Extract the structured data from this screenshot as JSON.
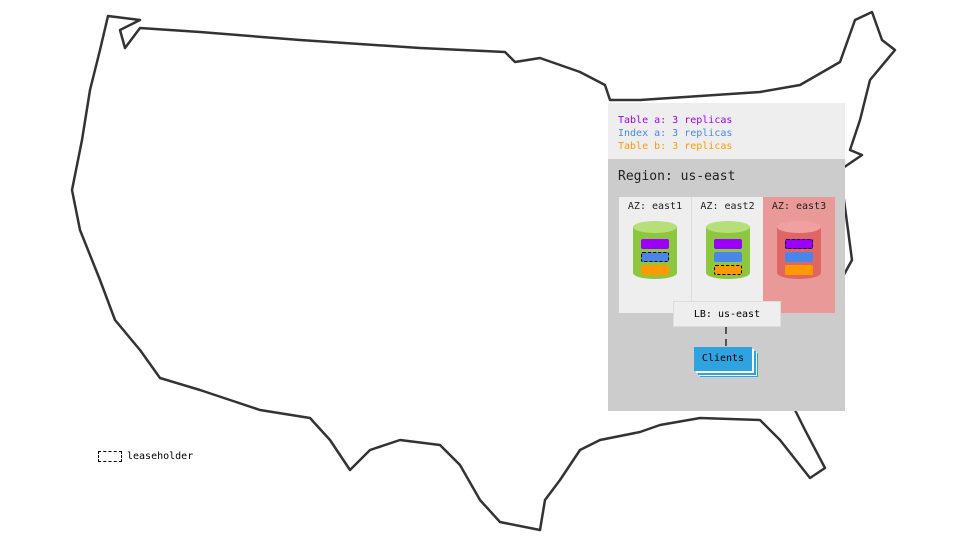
{
  "legend": [
    {
      "text": "Table a: 3 replicas",
      "color": "#9b00ff"
    },
    {
      "text": "Index a: 3 replicas",
      "color": "#4a86e8"
    },
    {
      "text": "Table b: 3 replicas",
      "color": "#ff9900"
    }
  ],
  "region": {
    "title": "Region: us-east",
    "zones": [
      {
        "label": "AZ: east1",
        "bg": "#eeeeee",
        "leaseholder": "Index a"
      },
      {
        "label": "AZ: east2",
        "bg": "#eeeeee",
        "leaseholder": "Table b"
      },
      {
        "label": "AZ: east3",
        "bg": "#ea9999",
        "leaseholder": "Table a",
        "status": "failed"
      }
    ],
    "lb": "LB: us-east",
    "clients": "Clients"
  },
  "key": {
    "leaseholder": "leaseholder"
  }
}
